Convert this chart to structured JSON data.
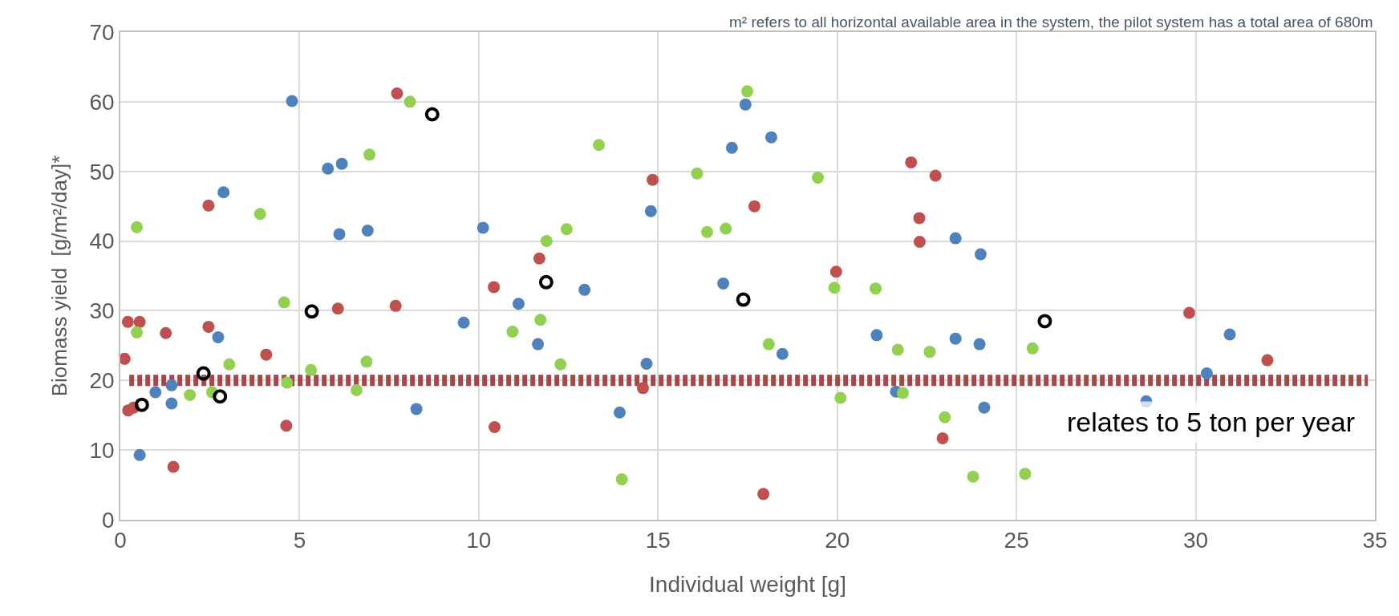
{
  "chart_data": {
    "type": "scatter",
    "xlabel": "Individual weight [g]",
    "ylabel": "Biomass yield  [g/m²/day]*",
    "annotations": [
      "m² refers to all horizontal available area in the system, the pilot system has a total area of 680m"
    ],
    "xlim": [
      0,
      35
    ],
    "xticks": [
      0,
      5,
      10,
      15,
      20,
      25,
      30,
      35
    ],
    "ylim": [
      0,
      70
    ],
    "yticks": [
      0,
      10,
      20,
      30,
      40,
      50,
      60,
      70
    ],
    "grid": true,
    "marker": "circle",
    "ref_lines": [
      {
        "axis": "y",
        "value": 20,
        "label": "relates to 5 ton per year",
        "color": "#a5474a"
      }
    ],
    "series": [
      {
        "color": "#4f81bd",
        "x": [
          4.79,
          2.88,
          5.79,
          6.18,
          6.11,
          6.9,
          10.12,
          11.11,
          9.58,
          12.95,
          14.8,
          17.44,
          17.06,
          18.16,
          23.3,
          24.0,
          16.82,
          2.73,
          0.98,
          1.43,
          1.43,
          0.54,
          8.26,
          11.65,
          13.93,
          14.68,
          18.47,
          21.1,
          23.3,
          23.97,
          30.95,
          30.31,
          21.64,
          24.1,
          28.62
        ],
        "values": [
          60.1,
          47.0,
          50.4,
          51.1,
          41.0,
          41.5,
          41.9,
          31.0,
          28.3,
          33.0,
          44.3,
          59.6,
          53.4,
          54.9,
          40.4,
          38.1,
          33.9,
          26.2,
          18.3,
          19.3,
          16.7,
          9.3,
          15.9,
          25.2,
          15.4,
          22.4,
          23.8,
          26.5,
          26.0,
          25.2,
          26.6,
          21.0,
          18.4,
          16.1,
          17.0
        ]
      },
      {
        "color": "#c0504d",
        "x": [
          7.72,
          2.46,
          6.07,
          7.68,
          10.42,
          11.69,
          14.85,
          0.21,
          0.54,
          1.27,
          2.46,
          17.69,
          22.06,
          22.74,
          22.29,
          22.3,
          19.97,
          29.82,
          0.12,
          4.07,
          0.22,
          0.37,
          1.48,
          4.63,
          10.44,
          14.58,
          32.0,
          22.94,
          17.94
        ],
        "values": [
          61.2,
          45.1,
          30.3,
          30.7,
          33.4,
          37.5,
          48.8,
          28.4,
          28.4,
          26.8,
          27.7,
          45.0,
          51.3,
          49.4,
          43.3,
          39.9,
          35.6,
          29.7,
          23.1,
          23.7,
          15.7,
          16.1,
          7.6,
          13.5,
          13.3,
          18.9,
          22.9,
          11.7,
          3.7
        ]
      },
      {
        "color": "#92d050",
        "x": [
          0.46,
          3.9,
          8.08,
          6.95,
          4.57,
          13.35,
          11.89,
          12.45,
          16.09,
          16.37,
          11.72,
          10.94,
          17.49,
          19.46,
          16.89,
          19.92,
          21.07,
          0.46,
          3.04,
          1.94,
          2.56,
          5.32,
          4.65,
          6.87,
          6.59,
          12.28,
          13.99,
          18.09,
          21.69,
          22.58,
          25.45,
          21.83,
          20.09,
          23.0,
          null,
          23.79,
          25.24
        ],
        "values": [
          42.0,
          43.9,
          60.0,
          52.4,
          31.2,
          53.8,
          40.0,
          41.7,
          49.7,
          41.3,
          28.7,
          27.0,
          61.5,
          49.1,
          41.8,
          33.3,
          33.2,
          26.9,
          22.3,
          17.9,
          18.3,
          21.5,
          19.7,
          22.7,
          18.6,
          22.3,
          5.8,
          25.2,
          24.4,
          24.1,
          24.6,
          18.2,
          17.5,
          14.7,
          null,
          6.2,
          6.6
        ]
      },
      {
        "color": "#000000",
        "marker": "circle-open",
        "x": [
          8.7,
          5.34,
          11.88,
          17.38,
          25.79,
          2.32,
          2.78,
          0.6
        ],
        "values": [
          58.2,
          29.9,
          34.1,
          31.6,
          28.5,
          21.0,
          17.7,
          16.5
        ]
      }
    ]
  }
}
